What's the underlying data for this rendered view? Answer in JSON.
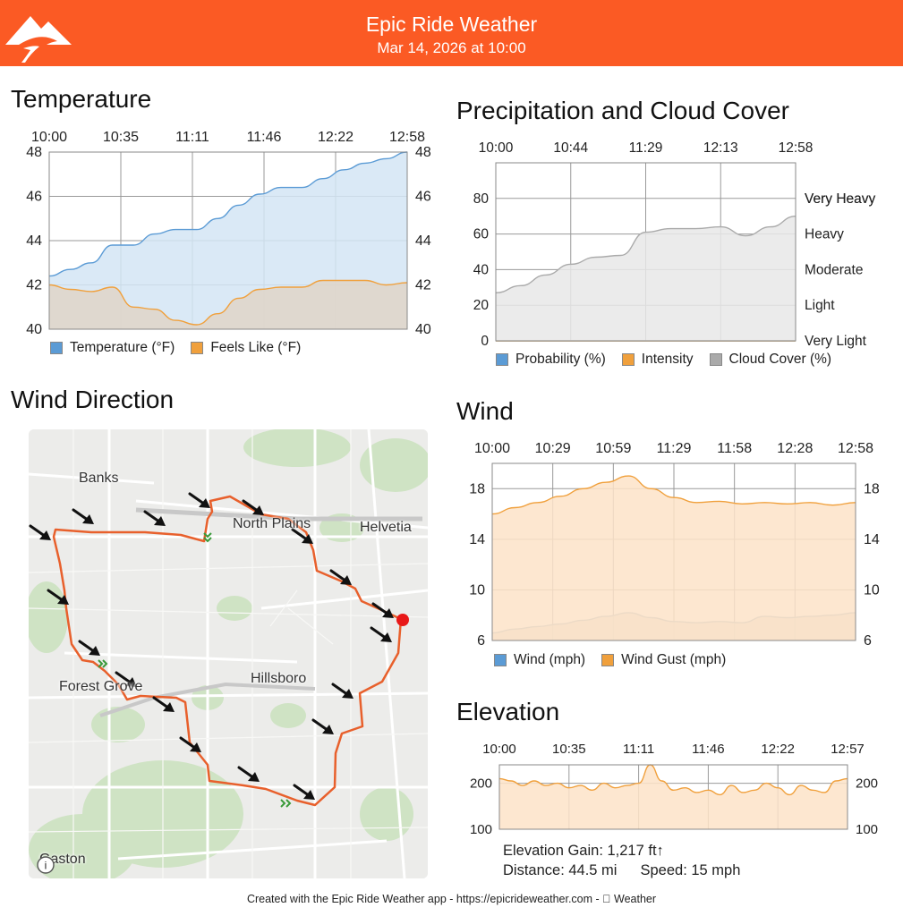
{
  "header": {
    "title": "Epic Ride Weather",
    "subtitle": "Mar 14, 2026 at 10:00",
    "logo_icon": "mountain-road-logo-icon"
  },
  "colors": {
    "header": "#fb5a24",
    "temperature": "#5b9bd5",
    "temperature_fill": "#d3e5f5",
    "feels_like": "#f0a03c",
    "feels_like_fill": "#dfd5c8",
    "cloud": "#aaaaaa",
    "cloud_fill": "#e8e8e8",
    "gust_fill": "#fde3c8",
    "wind_fill": "#dcd6cc",
    "route": "#e8602c",
    "elevation": "#f0a03c"
  },
  "charts": {
    "temperature": {
      "title": "Temperature",
      "legend": [
        {
          "label": "Temperature (°F)",
          "color": "#5b9bd5"
        },
        {
          "label": "Feels Like (°F)",
          "color": "#f0a03c"
        }
      ]
    },
    "precip": {
      "title": "Precipitation and Cloud Cover",
      "legend": [
        {
          "label": "Probability (%)",
          "color": "#5b9bd5"
        },
        {
          "label": "Intensity",
          "color": "#f0a03c"
        },
        {
          "label": "Cloud Cover (%)",
          "color": "#aaaaaa"
        }
      ]
    },
    "wind": {
      "title": "Wind",
      "legend": [
        {
          "label": "Wind (mph)",
          "color": "#5b9bd5"
        },
        {
          "label": "Wind Gust (mph)",
          "color": "#f0a03c"
        }
      ]
    },
    "elevation": {
      "title": "Elevation",
      "gain": "Elevation Gain: 1,217 ft↑",
      "distance": "Distance: 44.5 mi",
      "speed": "Speed: 15 mph"
    }
  },
  "map": {
    "title": "Wind Direction",
    "places": [
      "Banks",
      "North Plains",
      "Helvetia",
      "Forest Grove",
      "Hillsboro",
      "Gaston"
    ],
    "attribution_icon": "legal-info-icon"
  },
  "footer": {
    "text": "Created with the Epic Ride Weather app - https://epicrideweather.com -  Weather"
  },
  "chart_data": [
    {
      "type": "area",
      "title": "Temperature",
      "x_ticks": [
        "10:00",
        "10:35",
        "11:11",
        "11:46",
        "12:22",
        "12:58"
      ],
      "ylim": [
        40,
        48
      ],
      "y_ticks": [
        40,
        42,
        44,
        46,
        48
      ],
      "grid": true,
      "legend": "bottom",
      "series": [
        {
          "name": "Temperature (°F)",
          "values": [
            42.4,
            42.7,
            43.0,
            43.8,
            43.8,
            44.3,
            44.5,
            44.5,
            45.0,
            45.6,
            46.1,
            46.4,
            46.4,
            46.8,
            47.2,
            47.5,
            47.7,
            48.0
          ]
        },
        {
          "name": "Feels Like (°F)",
          "values": [
            42.0,
            41.8,
            41.7,
            41.9,
            41.0,
            40.9,
            40.4,
            40.2,
            40.7,
            41.4,
            41.8,
            41.9,
            41.9,
            42.2,
            42.2,
            42.2,
            42.0,
            42.1
          ]
        }
      ]
    },
    {
      "type": "area",
      "title": "Precipitation and Cloud Cover",
      "x_ticks": [
        "10:00",
        "10:44",
        "11:29",
        "12:13",
        "12:58"
      ],
      "ylim": [
        0,
        100
      ],
      "y_ticks": [
        0,
        20,
        40,
        60,
        80
      ],
      "y2_ticks": [
        "Very Light",
        "Light",
        "Moderate",
        "Heavy",
        "Very Heavy"
      ],
      "grid": true,
      "legend": "bottom",
      "series": [
        {
          "name": "Probability (%)",
          "values": [
            0,
            0,
            0,
            0,
            0,
            0,
            0,
            0,
            0,
            0,
            0,
            0,
            0
          ]
        },
        {
          "name": "Intensity",
          "values": [
            0,
            0,
            0,
            0,
            0,
            0,
            0,
            0,
            0,
            0,
            0,
            0,
            0
          ]
        },
        {
          "name": "Cloud Cover (%)",
          "values": [
            27,
            31,
            37,
            43,
            47,
            48,
            61,
            63,
            63,
            64,
            59,
            64,
            70
          ]
        }
      ]
    },
    {
      "type": "area",
      "title": "Wind",
      "x_ticks": [
        "10:00",
        "10:29",
        "10:59",
        "11:29",
        "11:58",
        "12:28",
        "12:58"
      ],
      "ylim": [
        6,
        20
      ],
      "y_ticks": [
        6,
        10,
        14,
        18
      ],
      "grid": true,
      "legend": "bottom",
      "series": [
        {
          "name": "Wind (mph)",
          "values": [
            6.6,
            6.9,
            7.1,
            7.3,
            7.6,
            7.9,
            8.2,
            7.8,
            7.5,
            7.4,
            7.5,
            7.4,
            7.9,
            7.8,
            7.9,
            8.0,
            8.2
          ]
        },
        {
          "name": "Wind Gust (mph)",
          "values": [
            16.0,
            16.5,
            16.9,
            17.4,
            18.0,
            18.5,
            19.0,
            18.0,
            17.3,
            16.9,
            17.0,
            16.8,
            16.9,
            16.8,
            16.9,
            16.7,
            16.9
          ]
        }
      ]
    },
    {
      "type": "area",
      "title": "Elevation",
      "x_ticks": [
        "10:00",
        "10:35",
        "11:11",
        "11:46",
        "12:22",
        "12:57"
      ],
      "ylim": [
        100,
        240
      ],
      "y_ticks": [
        100,
        200
      ],
      "grid": true,
      "series": [
        {
          "name": "Elevation",
          "values": [
            210,
            205,
            195,
            205,
            195,
            200,
            190,
            195,
            185,
            200,
            190,
            195,
            200,
            240,
            205,
            185,
            190,
            180,
            185,
            175,
            195,
            180,
            185,
            200,
            190,
            175,
            195,
            185,
            180,
            205,
            210
          ]
        }
      ]
    }
  ]
}
